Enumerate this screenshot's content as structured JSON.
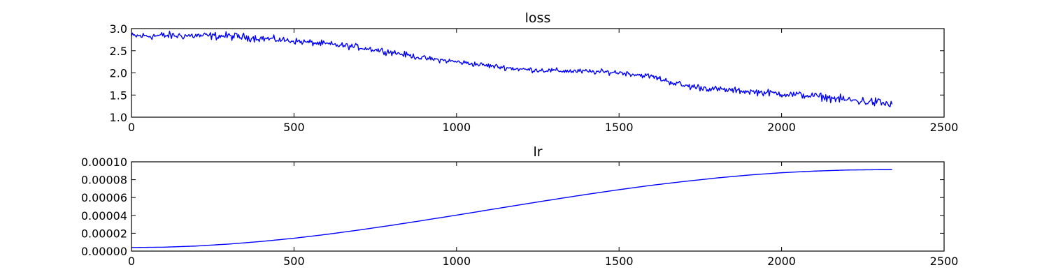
{
  "chart_data": [
    {
      "type": "line",
      "title": "loss",
      "xlabel": "",
      "ylabel": "",
      "xlim": [
        0,
        2500
      ],
      "ylim": [
        1.0,
        3.0
      ],
      "x_ticks": [
        0,
        500,
        1000,
        1500,
        2000,
        2500
      ],
      "y_ticks": [
        1.0,
        1.5,
        2.0,
        2.5,
        3.0
      ],
      "x_tick_labels": [
        "0",
        "500",
        "1000",
        "1500",
        "2000",
        "2500"
      ],
      "y_tick_labels": [
        "1.0",
        "1.5",
        "2.0",
        "2.5",
        "3.0"
      ],
      "grid": false,
      "legend": "none",
      "color": "#0000ff",
      "series": [
        {
          "x": [
            0,
            100,
            200,
            300,
            400,
            500,
            600,
            700,
            800,
            900,
            1000,
            1100,
            1200,
            1300,
            1400,
            1500,
            1600,
            1700,
            1800,
            1900,
            2000,
            2100,
            2200,
            2300,
            2340
          ],
          "y": [
            2.83,
            2.84,
            2.84,
            2.83,
            2.78,
            2.72,
            2.65,
            2.58,
            2.47,
            2.33,
            2.25,
            2.16,
            2.08,
            2.05,
            2.03,
            2.01,
            1.92,
            1.71,
            1.63,
            1.58,
            1.53,
            1.48,
            1.39,
            1.33,
            1.28
          ],
          "noise": [
            0.07,
            0.08,
            0.07,
            0.08,
            0.07,
            0.06,
            0.06,
            0.06,
            0.06,
            0.05,
            0.05,
            0.05,
            0.05,
            0.05,
            0.05,
            0.05,
            0.05,
            0.07,
            0.06,
            0.06,
            0.07,
            0.07,
            0.08,
            0.1,
            0.11
          ]
        }
      ]
    },
    {
      "type": "line",
      "title": "lr",
      "xlabel": "",
      "ylabel": "",
      "xlim": [
        0,
        2500
      ],
      "ylim": [
        0.0,
        0.0001
      ],
      "x_ticks": [
        0,
        500,
        1000,
        1500,
        2000,
        2500
      ],
      "y_ticks": [
        0.0,
        2e-05,
        4e-05,
        6e-05,
        8e-05,
        0.0001
      ],
      "x_tick_labels": [
        "0",
        "500",
        "1000",
        "1500",
        "2000",
        "2500"
      ],
      "y_tick_labels": [
        "0.00000",
        "0.00002",
        "0.00004",
        "0.00006",
        "0.00008",
        "0.00010"
      ],
      "grid": false,
      "legend": "none",
      "color": "#0000ff",
      "series": [
        {
          "x": [
            0,
            100,
            200,
            300,
            400,
            500,
            600,
            700,
            800,
            900,
            1000,
            1100,
            1200,
            1300,
            1400,
            1500,
            1600,
            1700,
            1800,
            1900,
            2000,
            2100,
            2200,
            2300,
            2340
          ],
          "y": [
            4e-06,
            4.4e-06,
            5.7e-06,
            7.9e-06,
            1.08e-05,
            1.44e-05,
            1.87e-05,
            2.36e-05,
            2.89e-05,
            3.45e-05,
            4.03e-05,
            4.62e-05,
            5.21e-05,
            5.79e-05,
            6.35e-05,
            6.88e-05,
            7.37e-05,
            7.8e-05,
            8.19e-05,
            8.52e-05,
            8.78e-05,
            8.96e-05,
            9.08e-05,
            9.12e-05,
            9.12e-05
          ]
        }
      ]
    }
  ]
}
